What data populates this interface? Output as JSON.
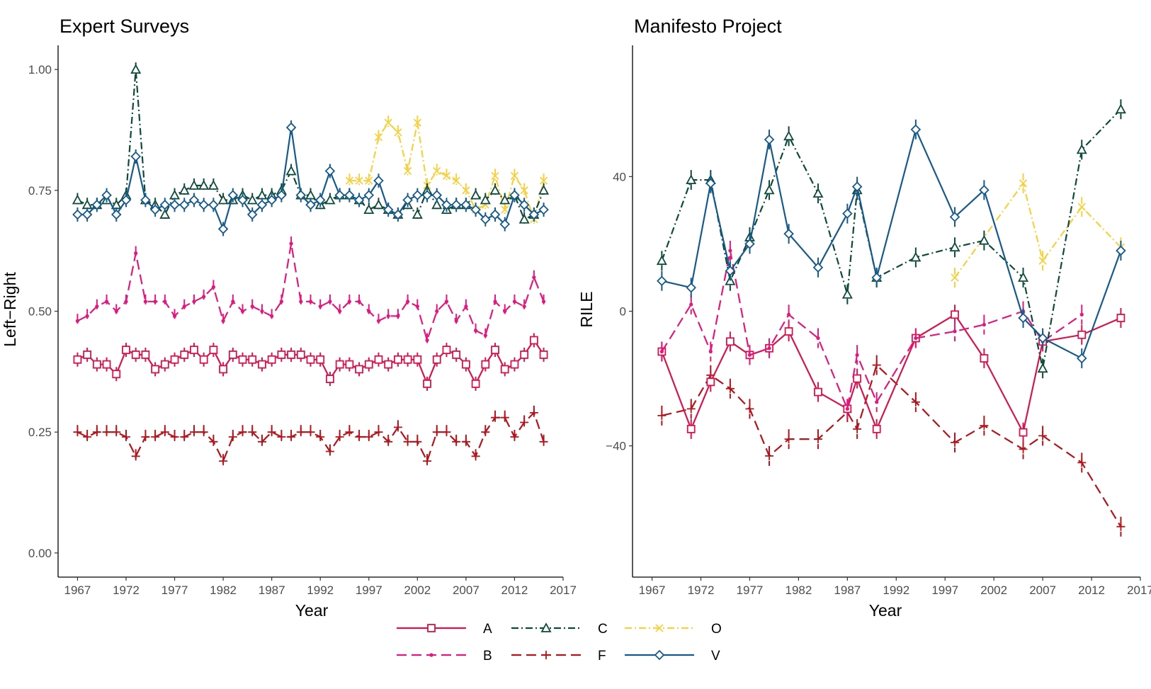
{
  "chart_data": [
    {
      "type": "line",
      "title": "Expert Surveys",
      "xlabel": "Year",
      "ylabel": "Left−Right",
      "xlim": [
        1965,
        2017
      ],
      "ylim": [
        -0.05,
        1.05
      ],
      "xticks": [
        1967,
        1972,
        1977,
        1982,
        1987,
        1992,
        1997,
        2002,
        2007,
        2012,
        2017
      ],
      "xtick_labels": [
        "1967",
        "1972",
        "1977",
        "1982",
        "1987",
        "1992",
        "1997",
        "2002",
        "2007",
        "2012",
        "2017"
      ],
      "yticks": [
        0,
        0.25,
        0.5,
        0.75,
        1.0
      ],
      "ytick_labels": [
        "0.00",
        "0.25",
        "0.50",
        "0.75",
        "1.00"
      ],
      "grid": false,
      "series": [
        {
          "name": "A",
          "x": [
            1967,
            1968,
            1969,
            1970,
            1971,
            1972,
            1973,
            1974,
            1975,
            1976,
            1977,
            1978,
            1979,
            1980,
            1981,
            1982,
            1983,
            1984,
            1985,
            1986,
            1987,
            1988,
            1989,
            1990,
            1991,
            1992,
            1993,
            1994,
            1995,
            1996,
            1997,
            1998,
            1999,
            2000,
            2001,
            2002,
            2003,
            2004,
            2005,
            2006,
            2007,
            2008,
            2009,
            2010,
            2011,
            2012,
            2013,
            2014,
            2015
          ],
          "y": [
            0.4,
            0.41,
            0.39,
            0.39,
            0.37,
            0.42,
            0.41,
            0.41,
            0.38,
            0.39,
            0.4,
            0.41,
            0.42,
            0.4,
            0.42,
            0.38,
            0.41,
            0.4,
            0.4,
            0.39,
            0.4,
            0.41,
            0.41,
            0.41,
            0.4,
            0.4,
            0.36,
            0.39,
            0.39,
            0.38,
            0.39,
            0.4,
            0.39,
            0.4,
            0.4,
            0.4,
            0.35,
            0.4,
            0.42,
            0.41,
            0.39,
            0.35,
            0.39,
            0.42,
            0.38,
            0.39,
            0.41,
            0.44,
            0.41
          ]
        },
        {
          "name": "B",
          "x": [
            1967,
            1968,
            1969,
            1970,
            1971,
            1972,
            1973,
            1974,
            1975,
            1976,
            1977,
            1978,
            1979,
            1980,
            1981,
            1982,
            1983,
            1984,
            1985,
            1986,
            1987,
            1988,
            1989,
            1990,
            1991,
            1992,
            1993,
            1994,
            1995,
            1996,
            1997,
            1998,
            1999,
            2000,
            2001,
            2002,
            2003,
            2004,
            2005,
            2006,
            2007,
            2008,
            2009,
            2010,
            2011,
            2012,
            2013,
            2014,
            2015
          ],
          "y": [
            0.48,
            0.49,
            0.51,
            0.52,
            0.5,
            0.52,
            0.62,
            0.52,
            0.52,
            0.52,
            0.49,
            0.51,
            0.52,
            0.53,
            0.55,
            0.48,
            0.52,
            0.5,
            0.51,
            0.5,
            0.49,
            0.52,
            0.64,
            0.52,
            0.52,
            0.51,
            0.52,
            0.5,
            0.52,
            0.52,
            0.5,
            0.48,
            0.49,
            0.49,
            0.52,
            0.51,
            0.44,
            0.5,
            0.52,
            0.48,
            0.51,
            0.46,
            0.45,
            0.52,
            0.5,
            0.52,
            0.51,
            0.57,
            0.52
          ]
        },
        {
          "name": "C",
          "x": [
            1967,
            1968,
            1969,
            1970,
            1971,
            1972,
            1973,
            1974,
            1975,
            1976,
            1977,
            1978,
            1979,
            1980,
            1981,
            1982,
            1983,
            1984,
            1985,
            1986,
            1987,
            1988,
            1989,
            1990,
            1991,
            1992,
            1993,
            1994,
            1995,
            1996,
            1997,
            1998,
            1999,
            2000,
            2001,
            2002,
            2003,
            2004,
            2005,
            2006,
            2007,
            2008,
            2009,
            2010,
            2011,
            2012,
            2013,
            2014,
            2015
          ],
          "y": [
            0.73,
            0.72,
            0.72,
            0.73,
            0.72,
            0.74,
            1.0,
            0.73,
            0.72,
            0.7,
            0.74,
            0.75,
            0.76,
            0.76,
            0.76,
            0.73,
            0.73,
            0.74,
            0.73,
            0.74,
            0.74,
            0.75,
            0.79,
            0.74,
            0.74,
            0.72,
            0.73,
            0.74,
            0.74,
            0.73,
            0.71,
            0.72,
            0.71,
            0.7,
            0.72,
            0.7,
            0.75,
            0.72,
            0.71,
            0.72,
            0.72,
            0.74,
            0.73,
            0.75,
            0.73,
            0.74,
            0.69,
            0.7,
            0.75
          ]
        },
        {
          "name": "O",
          "x": [
            1995,
            1996,
            1997,
            1998,
            1999,
            2000,
            2001,
            2002,
            2003,
            2004,
            2005,
            2006,
            2007,
            2008,
            2009,
            2010,
            2011,
            2012,
            2013,
            2014,
            2015
          ],
          "y": [
            0.77,
            0.77,
            0.77,
            0.86,
            0.89,
            0.87,
            0.79,
            0.89,
            0.76,
            0.79,
            0.78,
            0.77,
            0.75,
            0.71,
            0.72,
            0.78,
            0.71,
            0.78,
            0.75,
            0.69,
            0.77
          ]
        },
        {
          "name": "F",
          "x": [
            1967,
            1968,
            1969,
            1970,
            1971,
            1972,
            1973,
            1974,
            1975,
            1976,
            1977,
            1978,
            1979,
            1980,
            1981,
            1982,
            1983,
            1984,
            1985,
            1986,
            1987,
            1988,
            1989,
            1990,
            1991,
            1992,
            1993,
            1994,
            1995,
            1996,
            1997,
            1998,
            1999,
            2000,
            2001,
            2002,
            2003,
            2004,
            2005,
            2006,
            2007,
            2008,
            2009,
            2010,
            2011,
            2012,
            2013,
            2014,
            2015
          ],
          "y": [
            0.25,
            0.24,
            0.25,
            0.25,
            0.25,
            0.24,
            0.2,
            0.24,
            0.24,
            0.25,
            0.24,
            0.24,
            0.25,
            0.25,
            0.23,
            0.19,
            0.24,
            0.25,
            0.25,
            0.23,
            0.25,
            0.24,
            0.24,
            0.25,
            0.25,
            0.24,
            0.21,
            0.24,
            0.25,
            0.24,
            0.24,
            0.25,
            0.23,
            0.26,
            0.23,
            0.23,
            0.19,
            0.25,
            0.25,
            0.23,
            0.23,
            0.2,
            0.25,
            0.28,
            0.28,
            0.24,
            0.27,
            0.29,
            0.23
          ]
        },
        {
          "name": "V",
          "x": [
            1967,
            1968,
            1969,
            1970,
            1971,
            1972,
            1973,
            1974,
            1975,
            1976,
            1977,
            1978,
            1979,
            1980,
            1981,
            1982,
            1983,
            1984,
            1985,
            1986,
            1987,
            1988,
            1989,
            1990,
            1991,
            1992,
            1993,
            1994,
            1995,
            1996,
            1997,
            1998,
            1999,
            2000,
            2001,
            2002,
            2003,
            2004,
            2005,
            2006,
            2007,
            2008,
            2009,
            2010,
            2011,
            2012,
            2013,
            2014,
            2015
          ],
          "y": [
            0.7,
            0.7,
            0.72,
            0.74,
            0.7,
            0.73,
            0.82,
            0.73,
            0.71,
            0.72,
            0.72,
            0.72,
            0.73,
            0.72,
            0.72,
            0.67,
            0.74,
            0.73,
            0.7,
            0.72,
            0.73,
            0.74,
            0.88,
            0.74,
            0.72,
            0.73,
            0.79,
            0.74,
            0.74,
            0.73,
            0.74,
            0.77,
            0.71,
            0.7,
            0.73,
            0.74,
            0.74,
            0.74,
            0.72,
            0.72,
            0.72,
            0.71,
            0.69,
            0.7,
            0.68,
            0.74,
            0.72,
            0.7,
            0.71
          ]
        }
      ]
    },
    {
      "type": "line",
      "title": "Manifesto Project",
      "xlabel": "Year",
      "ylabel": "RILE",
      "xlim": [
        1965,
        2017
      ],
      "ylim": [
        -79,
        79
      ],
      "xticks": [
        1967,
        1972,
        1977,
        1982,
        1987,
        1992,
        1997,
        2002,
        2007,
        2012,
        2017
      ],
      "xtick_labels": [
        "1967",
        "1972",
        "1977",
        "1982",
        "1987",
        "1992",
        "1997",
        "2002",
        "2007",
        "2012",
        "2017"
      ],
      "yticks": [
        -40,
        0,
        40
      ],
      "ytick_labels": [
        "−40",
        "0",
        "40"
      ],
      "grid": false,
      "series": [
        {
          "name": "A",
          "x": [
            1968,
            1971,
            1973,
            1975,
            1977,
            1979,
            1981,
            1984,
            1987,
            1988,
            1990,
            1994,
            1998,
            2001,
            2005,
            2007,
            2011,
            2015
          ],
          "y": [
            -12,
            -35,
            -21,
            -9,
            -13,
            -11,
            -6,
            -24,
            -29,
            -20,
            -35,
            -8,
            -1,
            -14,
            -36,
            -9,
            -7,
            -2
          ]
        },
        {
          "name": "B",
          "x": [
            1968,
            1971,
            1973,
            1975,
            1977,
            1979,
            1981,
            1984,
            1987,
            1988,
            1990,
            1994,
            1998,
            2001,
            2005,
            2007,
            2011
          ],
          "y": [
            -12,
            2,
            -12,
            18,
            -13,
            -11,
            -1,
            -8,
            -29,
            -13,
            -27,
            -8,
            -6,
            -4,
            0,
            -9,
            -1
          ]
        },
        {
          "name": "C",
          "x": [
            1968,
            1971,
            1973,
            1975,
            1977,
            1979,
            1981,
            1984,
            1987,
            1988,
            1990,
            1994,
            1998,
            2001,
            2005,
            2007,
            2011,
            2015
          ],
          "y": [
            15,
            39,
            39,
            9,
            22,
            36,
            52,
            35,
            5,
            36,
            10,
            16,
            19,
            21,
            10,
            -17,
            48,
            60
          ]
        },
        {
          "name": "O",
          "x": [
            1998,
            2005,
            2007,
            2011,
            2015
          ],
          "y": [
            10,
            38,
            15,
            31,
            19
          ]
        },
        {
          "name": "F",
          "x": [
            1968,
            1971,
            1973,
            1975,
            1977,
            1979,
            1981,
            1984,
            1987,
            1988,
            1990,
            1994,
            1998,
            2001,
            2005,
            2007,
            2011,
            2015
          ],
          "y": [
            -31,
            -29,
            -19,
            -23,
            -29,
            -43,
            -38,
            -38,
            -30,
            -35,
            -16,
            -27,
            -39,
            -34,
            -41,
            -37,
            -45,
            -64
          ]
        },
        {
          "name": "V",
          "x": [
            1968,
            1971,
            1973,
            1975,
            1977,
            1979,
            1981,
            1984,
            1987,
            1988,
            1990,
            1994,
            1998,
            2001,
            2005,
            2007,
            2011,
            2015
          ],
          "y": [
            9,
            7,
            38,
            12,
            20,
            51,
            23,
            13,
            29,
            37,
            10,
            54,
            28,
            36,
            -2,
            -8,
            -14,
            18
          ]
        }
      ]
    }
  ],
  "legend": {
    "entries": [
      {
        "key": "A",
        "label": "A",
        "color": "#d4154e",
        "dash": "solid",
        "shape": "square"
      },
      {
        "key": "C",
        "label": "C",
        "color": "#0e4a3a",
        "dash": "dotdash",
        "shape": "triangle"
      },
      {
        "key": "O",
        "label": "O",
        "color": "#f5d03f",
        "dash": "dotdash",
        "shape": "cross"
      },
      {
        "key": "B",
        "label": "B",
        "color": "#e0187f",
        "dash": "longdash",
        "shape": "dot"
      },
      {
        "key": "F",
        "label": "F",
        "color": "#b2141c",
        "dash": "longdash",
        "shape": "plus"
      },
      {
        "key": "V",
        "label": "V",
        "color": "#155a8a",
        "dash": "solid",
        "shape": "diamond"
      }
    ]
  }
}
